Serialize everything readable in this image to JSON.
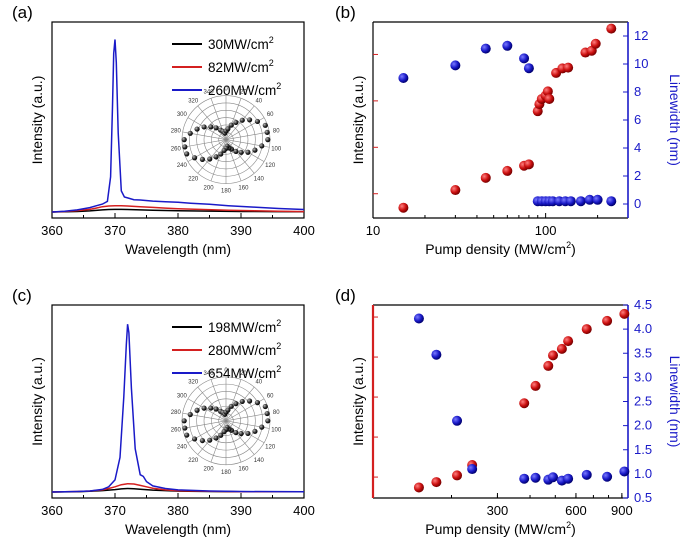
{
  "chart_data": [
    {
      "id": "a",
      "panel_label": "(a)",
      "type": "line",
      "xlabel": "Wavelength (nm)",
      "ylabel": "Intensity (a.u.)",
      "xlim": [
        360,
        400
      ],
      "ylim": [
        0,
        1
      ],
      "xticks": [
        "360",
        "370",
        "380",
        "390",
        "400"
      ],
      "legend": [
        {
          "label": "30MW/cm",
          "sup": "2",
          "color": "#000000"
        },
        {
          "label": "82MW/cm",
          "sup": "2",
          "color": "#d42020"
        },
        {
          "label": "260MW/cm",
          "sup": "2",
          "color": "#1a1ac8"
        }
      ],
      "series": [
        {
          "name": "30MW/cm2",
          "color": "#000000",
          "x": [
            360,
            364,
            366,
            367,
            368,
            369,
            370,
            371,
            372,
            374,
            376,
            380,
            385,
            390,
            395,
            400
          ],
          "values": [
            0,
            0.003,
            0.006,
            0.009,
            0.012,
            0.014,
            0.015,
            0.015,
            0.014,
            0.012,
            0.01,
            0.007,
            0.005,
            0.003,
            0.002,
            0.001
          ]
        },
        {
          "name": "82MW/cm2",
          "color": "#d42020",
          "x": [
            360,
            362,
            364,
            366,
            367,
            368,
            369,
            370,
            371,
            372,
            374,
            376,
            378,
            380,
            384,
            388,
            392,
            396,
            400
          ],
          "values": [
            0,
            0.003,
            0.008,
            0.015,
            0.022,
            0.03,
            0.034,
            0.036,
            0.035,
            0.034,
            0.03,
            0.026,
            0.022,
            0.019,
            0.014,
            0.01,
            0.007,
            0.004,
            0.002
          ]
        },
        {
          "name": "260MW/cm2",
          "color": "#1a1ac8",
          "x": [
            360,
            362,
            364,
            366,
            367,
            368,
            368.8,
            369.3,
            369.6,
            369.8,
            370,
            370.2,
            370.5,
            371,
            371.5,
            372,
            373,
            374,
            376,
            378,
            380,
            382,
            385,
            388,
            392,
            396,
            400
          ],
          "values": [
            0,
            0.004,
            0.012,
            0.025,
            0.035,
            0.045,
            0.06,
            0.2,
            0.6,
            0.9,
            0.98,
            0.85,
            0.45,
            0.12,
            0.085,
            0.08,
            0.07,
            0.068,
            0.062,
            0.058,
            0.055,
            0.05,
            0.044,
            0.036,
            0.028,
            0.02,
            0.014
          ]
        }
      ],
      "polar_inset": {
        "angle_labels": [
          "0",
          "20",
          "40",
          "60",
          "80",
          "100",
          "120",
          "140",
          "160",
          "180",
          "200",
          "220",
          "240",
          "260",
          "280",
          "300",
          "320",
          "340"
        ],
        "radius": [
          0.95,
          0.7,
          0.45,
          0.25,
          0.15,
          0.25,
          0.45,
          0.7,
          0.95,
          0.95,
          0.7,
          0.45,
          0.25,
          0.15,
          0.25,
          0.45,
          0.7,
          0.95
        ],
        "angles": [
          0,
          20,
          40,
          60,
          80,
          100,
          120,
          140,
          160,
          180,
          200,
          220,
          240,
          260,
          280,
          300,
          320,
          340
        ],
        "note": "petal orientation ~90 deg (horizontal bow-tie)"
      }
    },
    {
      "id": "b",
      "panel_label": "(b)",
      "type": "scatter",
      "xlabel": "Pump density (MW/cm",
      "xlabel_sup": "2",
      "xlabel_end": ")",
      "ylabel": "Intensity (a.u.)",
      "ylabel_right": "Linewidth (nm)",
      "xscale": "log",
      "xlim": [
        10,
        300
      ],
      "xticks": [
        {
          "v": 10,
          "label": "10"
        },
        {
          "v": 100,
          "label": "100"
        }
      ],
      "ylim_left_log": [
        0.3,
        5000
      ],
      "ylim_right": [
        -1,
        13
      ],
      "yticks_right": [
        "0",
        "2",
        "4",
        "6",
        "8",
        "10",
        "12"
      ],
      "series": [
        {
          "name": "Intensity",
          "axis": "left",
          "color": "#d42020",
          "x": [
            15,
            30,
            45,
            60,
            75,
            80,
            90,
            92,
            95,
            100,
            103,
            105,
            115,
            125,
            135,
            170,
            185,
            195,
            240
          ],
          "values": [
            0.5,
            1.2,
            2.2,
            3.1,
            4.0,
            4.3,
            60,
            85,
            110,
            130,
            160,
            110,
            400,
            500,
            520,
            1100,
            1200,
            1700,
            3600
          ]
        },
        {
          "name": "Linewidth",
          "axis": "right",
          "color": "#1a1ac8",
          "x": [
            15,
            30,
            45,
            60,
            75,
            80,
            90,
            95,
            100,
            105,
            110,
            120,
            130,
            140,
            160,
            180,
            200,
            240
          ],
          "values": [
            9,
            9.9,
            11.1,
            11.3,
            10.4,
            9.7,
            0.2,
            0.2,
            0.2,
            0.2,
            0.2,
            0.2,
            0.2,
            0.2,
            0.2,
            0.3,
            0.3,
            0.2
          ]
        }
      ]
    },
    {
      "id": "c",
      "panel_label": "(c)",
      "type": "line",
      "xlabel": "Wavelength (nm)",
      "ylabel": "Intensity (a.u.)",
      "xlim": [
        360,
        400
      ],
      "ylim": [
        0,
        1
      ],
      "xticks": [
        "360",
        "370",
        "380",
        "390",
        "400"
      ],
      "legend": [
        {
          "label": "198MW/cm",
          "sup": "2",
          "color": "#000000"
        },
        {
          "label": "280MW/cm",
          "sup": "2",
          "color": "#d42020"
        },
        {
          "label": "654MW/cm",
          "sup": "2",
          "color": "#1a1ac8"
        }
      ],
      "series": [
        {
          "name": "198MW/cm2",
          "color": "#000000",
          "x": [
            360,
            364,
            366,
            368,
            370,
            371,
            372,
            373,
            374,
            376,
            378,
            380,
            385,
            390,
            400
          ],
          "values": [
            0,
            0.002,
            0.004,
            0.008,
            0.014,
            0.018,
            0.02,
            0.019,
            0.016,
            0.011,
            0.008,
            0.005,
            0.003,
            0.002,
            0.001
          ]
        },
        {
          "name": "280MW/cm2",
          "color": "#d42020",
          "x": [
            360,
            364,
            366,
            368,
            369,
            370,
            371,
            372,
            373,
            374,
            375,
            376,
            378,
            380,
            385,
            390,
            400
          ],
          "values": [
            0,
            0.003,
            0.006,
            0.012,
            0.02,
            0.03,
            0.042,
            0.048,
            0.046,
            0.038,
            0.03,
            0.022,
            0.012,
            0.007,
            0.004,
            0.002,
            0.001
          ]
        },
        {
          "name": "654MW/cm2",
          "color": "#1a1ac8",
          "x": [
            360,
            364,
            366,
            368,
            369,
            370,
            370.8,
            371.4,
            371.8,
            372,
            372.2,
            372.6,
            373.2,
            374,
            374.5,
            375,
            376,
            378,
            380,
            385,
            390,
            400
          ],
          "values": [
            0,
            0.003,
            0.006,
            0.015,
            0.03,
            0.07,
            0.2,
            0.55,
            0.85,
            0.97,
            0.92,
            0.6,
            0.25,
            0.1,
            0.09,
            0.06,
            0.035,
            0.02,
            0.012,
            0.006,
            0.003,
            0.001
          ]
        }
      ],
      "polar_inset": {
        "angle_labels": [
          "0",
          "20",
          "40",
          "60",
          "80",
          "100",
          "120",
          "140",
          "160",
          "180",
          "200",
          "220",
          "240",
          "260",
          "280",
          "300",
          "320",
          "340"
        ],
        "radius": [
          0.95,
          0.7,
          0.45,
          0.25,
          0.15,
          0.25,
          0.45,
          0.7,
          0.95,
          0.95,
          0.7,
          0.45,
          0.25,
          0.15,
          0.25,
          0.45,
          0.7,
          0.95
        ],
        "angles": [
          0,
          20,
          40,
          60,
          80,
          100,
          120,
          140,
          160,
          180,
          200,
          220,
          240,
          260,
          280,
          300,
          320,
          340
        ],
        "note": "petal orientation ~90 deg (horizontal bow-tie)"
      }
    },
    {
      "id": "d",
      "panel_label": "(d)",
      "type": "scatter",
      "xlabel": "Pump density (MW/cm",
      "xlabel_sup": "2",
      "xlabel_end": ")",
      "ylabel": "Intensity (a.u.)",
      "ylabel_right": "Linewidth (nm)",
      "xscale": "log",
      "xlim": [
        100,
        950
      ],
      "xticks": [
        {
          "v": 300,
          "label": "300"
        },
        {
          "v": 600,
          "label": "600"
        },
        {
          "v": 900,
          "label": "900"
        }
      ],
      "ylim_left_log": [
        0.3,
        20000
      ],
      "ylim_right": [
        0.5,
        4.5
      ],
      "yticks_right": [
        "0.5",
        "1.0",
        "1.5",
        "2.0",
        "2.5",
        "3.0",
        "3.5",
        "4.0",
        "4.5"
      ],
      "series": [
        {
          "name": "Intensity",
          "axis": "left",
          "color": "#d42020",
          "x": [
            150,
            175,
            210,
            240,
            380,
            420,
            470,
            490,
            530,
            560,
            660,
            790,
            920
          ],
          "values": [
            0.55,
            0.75,
            1.1,
            2.0,
            70,
            190,
            600,
            1100,
            1600,
            2500,
            5000,
            8000,
            12000
          ]
        },
        {
          "name": "Linewidth",
          "axis": "right",
          "color": "#1a1ac8",
          "x": [
            150,
            175,
            210,
            240,
            380,
            420,
            470,
            490,
            530,
            560,
            660,
            790,
            920
          ],
          "values": [
            4.22,
            3.47,
            2.1,
            1.1,
            0.9,
            0.92,
            0.88,
            0.93,
            0.86,
            0.9,
            0.98,
            0.94,
            1.05
          ]
        }
      ]
    }
  ]
}
